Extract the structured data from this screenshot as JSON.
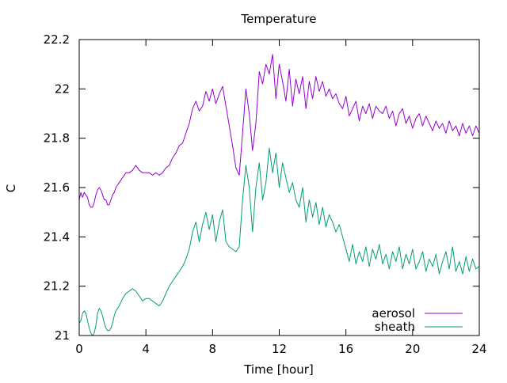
{
  "chart_data": {
    "type": "line",
    "title": "Temperature",
    "xlabel": "Time [hour]",
    "ylabel": "C",
    "xlim": [
      0,
      24
    ],
    "ylim": [
      21,
      22.2
    ],
    "xticks": [
      0,
      4,
      8,
      12,
      16,
      20,
      24
    ],
    "xtick_labels": [
      "0",
      "4",
      "8",
      "12",
      "16",
      "20",
      "24"
    ],
    "yticks": [
      21,
      21.2,
      21.4,
      21.6,
      21.8,
      22,
      22.2
    ],
    "ytick_labels": [
      "21",
      "21.2",
      "21.4",
      "21.6",
      "21.8",
      "22",
      "22.2"
    ],
    "grid": false,
    "legend_position": "bottom-right",
    "series": [
      {
        "name": "aerosol",
        "color": "#9400d3",
        "x": [
          0,
          0.1,
          0.2,
          0.3,
          0.4,
          0.5,
          0.6,
          0.7,
          0.8,
          0.9,
          1.0,
          1.1,
          1.2,
          1.3,
          1.4,
          1.5,
          1.6,
          1.7,
          1.8,
          1.9,
          2.0,
          2.1,
          2.2,
          2.4,
          2.6,
          2.8,
          3.0,
          3.2,
          3.4,
          3.6,
          3.8,
          4.0,
          4.2,
          4.4,
          4.6,
          4.8,
          5.0,
          5.2,
          5.4,
          5.6,
          5.8,
          6.0,
          6.2,
          6.4,
          6.6,
          6.8,
          7.0,
          7.2,
          7.4,
          7.6,
          7.8,
          8.0,
          8.2,
          8.4,
          8.6,
          8.8,
          9.0,
          9.2,
          9.4,
          9.6,
          9.8,
          10.0,
          10.2,
          10.4,
          10.6,
          10.8,
          11.0,
          11.2,
          11.4,
          11.6,
          11.8,
          12.0,
          12.2,
          12.4,
          12.6,
          12.8,
          13.0,
          13.2,
          13.4,
          13.6,
          13.8,
          14.0,
          14.2,
          14.4,
          14.6,
          14.8,
          15.0,
          15.2,
          15.4,
          15.6,
          15.8,
          16.0,
          16.2,
          16.4,
          16.6,
          16.8,
          17.0,
          17.2,
          17.4,
          17.6,
          17.8,
          18.0,
          18.2,
          18.4,
          18.6,
          18.8,
          19.0,
          19.2,
          19.4,
          19.6,
          19.8,
          20.0,
          20.2,
          20.4,
          20.6,
          20.8,
          21.0,
          21.2,
          21.4,
          21.6,
          21.8,
          22.0,
          22.2,
          22.4,
          22.6,
          22.8,
          23.0,
          23.2,
          23.4,
          23.6,
          23.8,
          24.0
        ],
        "y": [
          21.55,
          21.58,
          21.56,
          21.58,
          21.57,
          21.56,
          21.53,
          21.52,
          21.52,
          21.54,
          21.57,
          21.59,
          21.6,
          21.59,
          21.57,
          21.55,
          21.55,
          21.53,
          21.53,
          21.55,
          21.57,
          21.58,
          21.6,
          21.62,
          21.64,
          21.66,
          21.66,
          21.67,
          21.69,
          21.67,
          21.66,
          21.66,
          21.66,
          21.65,
          21.66,
          21.65,
          21.66,
          21.68,
          21.69,
          21.72,
          21.74,
          21.77,
          21.78,
          21.82,
          21.86,
          21.92,
          21.95,
          21.91,
          21.93,
          21.99,
          21.95,
          22.0,
          21.94,
          21.98,
          22.01,
          21.93,
          21.85,
          21.77,
          21.68,
          21.65,
          21.82,
          22.0,
          21.9,
          21.75,
          21.86,
          22.07,
          22.02,
          22.1,
          22.06,
          22.14,
          21.96,
          22.1,
          22.03,
          21.95,
          22.08,
          21.93,
          22.04,
          21.98,
          22.05,
          21.92,
          22.03,
          21.96,
          22.05,
          21.99,
          22.03,
          21.97,
          22.0,
          21.96,
          21.98,
          21.94,
          21.92,
          21.97,
          21.89,
          21.92,
          21.95,
          21.87,
          21.93,
          21.9,
          21.94,
          21.88,
          21.93,
          21.91,
          21.9,
          21.93,
          21.88,
          21.91,
          21.85,
          21.9,
          21.92,
          21.86,
          21.89,
          21.84,
          21.88,
          21.9,
          21.85,
          21.89,
          21.86,
          21.83,
          21.87,
          21.84,
          21.86,
          21.82,
          21.87,
          21.83,
          21.85,
          21.81,
          21.86,
          21.82,
          21.85,
          21.81,
          21.85,
          21.82
        ]
      },
      {
        "name": "sheath",
        "color": "#009e73",
        "x": [
          0,
          0.1,
          0.2,
          0.3,
          0.4,
          0.5,
          0.6,
          0.7,
          0.8,
          0.9,
          1.0,
          1.1,
          1.2,
          1.3,
          1.4,
          1.5,
          1.6,
          1.7,
          1.8,
          1.9,
          2.0,
          2.1,
          2.2,
          2.4,
          2.6,
          2.8,
          3.0,
          3.2,
          3.4,
          3.6,
          3.8,
          4.0,
          4.2,
          4.4,
          4.6,
          4.8,
          5.0,
          5.2,
          5.4,
          5.6,
          5.8,
          6.0,
          6.2,
          6.4,
          6.6,
          6.8,
          7.0,
          7.2,
          7.4,
          7.6,
          7.8,
          8.0,
          8.2,
          8.4,
          8.6,
          8.8,
          9.0,
          9.2,
          9.4,
          9.6,
          9.8,
          10.0,
          10.2,
          10.4,
          10.6,
          10.8,
          11.0,
          11.2,
          11.4,
          11.6,
          11.8,
          12.0,
          12.2,
          12.4,
          12.6,
          12.8,
          13.0,
          13.2,
          13.4,
          13.6,
          13.8,
          14.0,
          14.2,
          14.4,
          14.6,
          14.8,
          15.0,
          15.2,
          15.4,
          15.6,
          15.8,
          16.0,
          16.2,
          16.4,
          16.6,
          16.8,
          17.0,
          17.2,
          17.4,
          17.6,
          17.8,
          18.0,
          18.2,
          18.4,
          18.6,
          18.8,
          19.0,
          19.2,
          19.4,
          19.6,
          19.8,
          20.0,
          20.2,
          20.4,
          20.6,
          20.8,
          21.0,
          21.2,
          21.4,
          21.6,
          21.8,
          22.0,
          22.2,
          22.4,
          22.6,
          22.8,
          23.0,
          23.2,
          23.4,
          23.6,
          23.8,
          24.0
        ],
        "y": [
          21.05,
          21.06,
          21.09,
          21.1,
          21.09,
          21.06,
          21.03,
          21.01,
          21.0,
          21.01,
          21.04,
          21.09,
          21.11,
          21.1,
          21.08,
          21.05,
          21.03,
          21.02,
          21.02,
          21.03,
          21.05,
          21.08,
          21.1,
          21.12,
          21.15,
          21.17,
          21.18,
          21.19,
          21.18,
          21.16,
          21.14,
          21.15,
          21.15,
          21.14,
          21.13,
          21.12,
          21.14,
          21.17,
          21.2,
          21.22,
          21.24,
          21.26,
          21.28,
          21.31,
          21.35,
          21.42,
          21.46,
          21.38,
          21.45,
          21.5,
          21.43,
          21.49,
          21.38,
          21.46,
          21.51,
          21.38,
          21.36,
          21.35,
          21.34,
          21.36,
          21.55,
          21.69,
          21.6,
          21.42,
          21.6,
          21.7,
          21.55,
          21.62,
          21.76,
          21.66,
          21.74,
          21.6,
          21.7,
          21.64,
          21.58,
          21.62,
          21.55,
          21.52,
          21.6,
          21.46,
          21.55,
          21.48,
          21.54,
          21.45,
          21.52,
          21.44,
          21.49,
          21.46,
          21.42,
          21.45,
          21.4,
          21.35,
          21.3,
          21.37,
          21.29,
          21.34,
          21.3,
          21.36,
          21.28,
          21.35,
          21.31,
          21.37,
          21.29,
          21.33,
          21.27,
          21.34,
          21.3,
          21.36,
          21.27,
          21.33,
          21.29,
          21.35,
          21.27,
          21.3,
          21.34,
          21.26,
          21.31,
          21.28,
          21.33,
          21.25,
          21.3,
          21.34,
          21.27,
          21.36,
          21.26,
          21.3,
          21.25,
          21.32,
          21.26,
          21.31,
          21.27,
          21.28
        ]
      }
    ]
  }
}
